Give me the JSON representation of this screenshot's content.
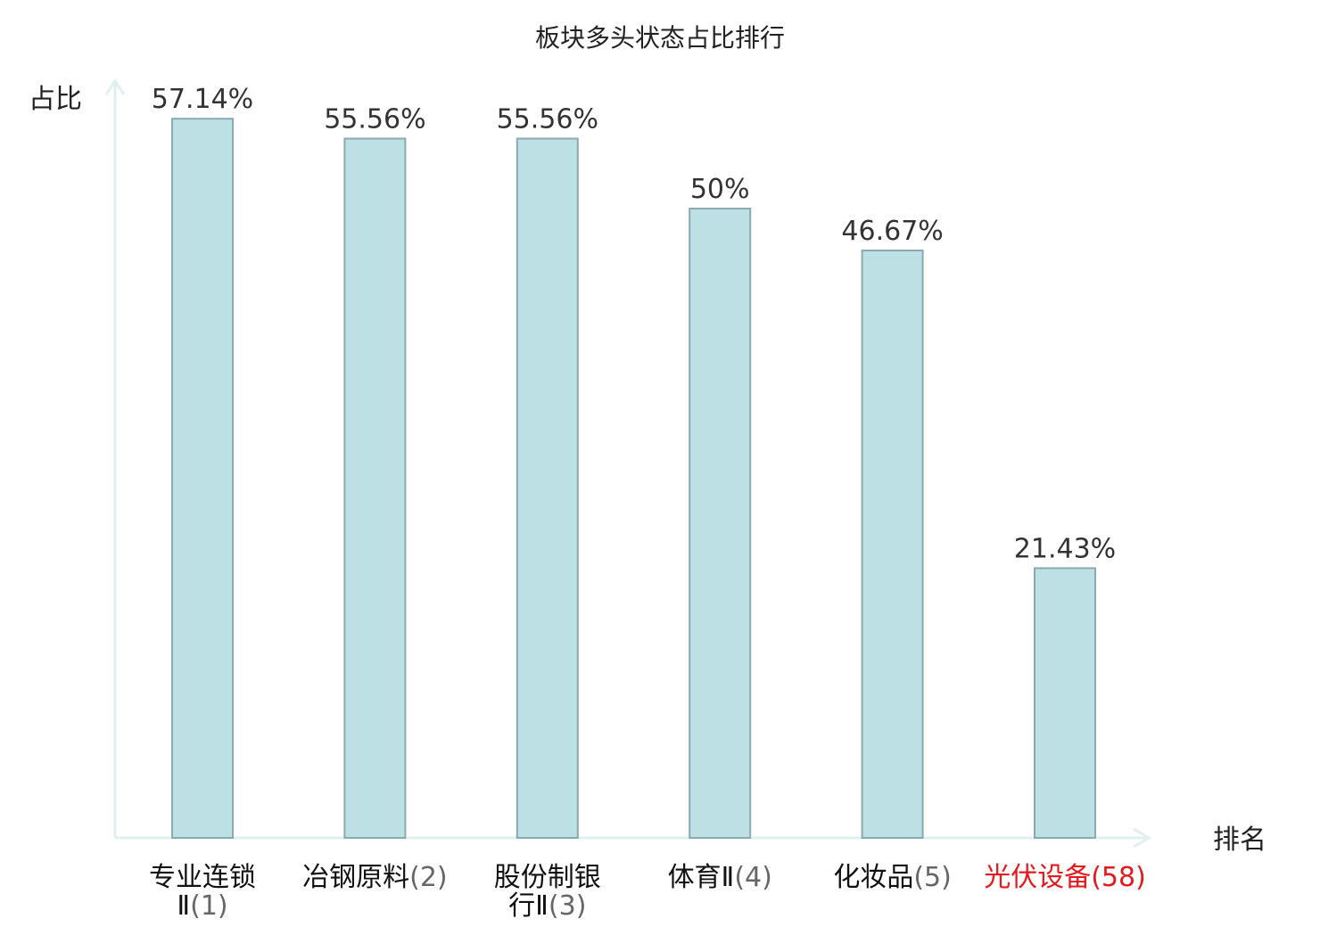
{
  "chart_data": {
    "type": "bar",
    "title": "板块多头状态占比排行",
    "ylabel": "占比",
    "xlabel": "排名",
    "ylim": [
      0,
      60
    ],
    "grid": false,
    "categories": [
      {
        "name_lines": [
          "专业连锁",
          "Ⅱ"
        ],
        "rank": "(1)",
        "highlight": false
      },
      {
        "name_lines": [
          "冶钢原料"
        ],
        "rank": "(2)",
        "highlight": false
      },
      {
        "name_lines": [
          "股份制银",
          "行Ⅱ"
        ],
        "rank": "(3)",
        "highlight": false
      },
      {
        "name_lines": [
          "体育Ⅱ"
        ],
        "rank": "(4)",
        "highlight": false
      },
      {
        "name_lines": [
          "化妆品"
        ],
        "rank": "(5)",
        "highlight": false
      },
      {
        "name_lines": [
          "光伏设备"
        ],
        "rank": "(58)",
        "highlight": true
      }
    ],
    "values": [
      57.14,
      55.56,
      55.56,
      50,
      46.67,
      21.43
    ],
    "value_labels": [
      "57.14%",
      "55.56%",
      "55.56%",
      "50%",
      "46.67%",
      "21.43%"
    ],
    "colors": {
      "bar_fill": "#bce0e3",
      "bar_stroke": "#8aaaad",
      "axis": "#dff0ee",
      "highlight_text": "#e8191c",
      "normal_text": "#111111",
      "rank_text": "#666666"
    }
  }
}
